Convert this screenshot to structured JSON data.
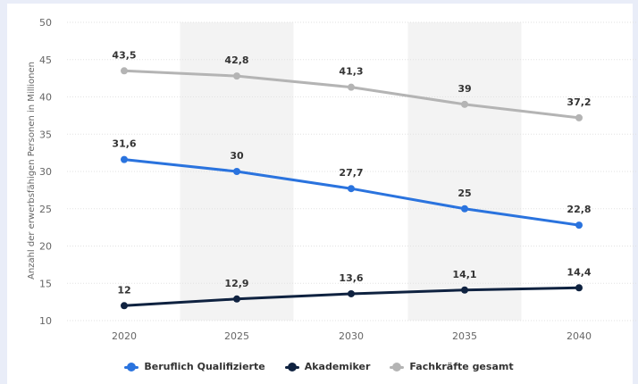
{
  "chart_data": {
    "type": "line",
    "title": "",
    "xlabel": "",
    "ylabel": "Anzahl der erwerbsfähigen Personen in Millionen",
    "categories": [
      "2020",
      "2025",
      "2030",
      "2035",
      "2040"
    ],
    "ylim": [
      10,
      50
    ],
    "yticks": [
      10,
      15,
      20,
      25,
      30,
      35,
      40,
      45,
      50
    ],
    "grid": true,
    "legend_position": "bottom",
    "series": [
      {
        "name": "Beruflich Qualifizierte",
        "color": "#2a73de",
        "values": [
          31.6,
          30,
          27.7,
          25,
          22.8
        ],
        "labels": [
          "31,6",
          "30",
          "27,7",
          "25",
          "22,8"
        ]
      },
      {
        "name": "Akademiker",
        "color": "#0f2240",
        "values": [
          12,
          12.9,
          13.6,
          14.1,
          14.4
        ],
        "labels": [
          "12",
          "12,9",
          "13,6",
          "14,1",
          "14,4"
        ]
      },
      {
        "name": "Fachkräfte gesamt",
        "color": "#b4b4b4",
        "values": [
          43.5,
          42.8,
          41.3,
          39,
          37.2
        ],
        "labels": [
          "43,5",
          "42,8",
          "41,3",
          "39",
          "37,2"
        ]
      }
    ]
  }
}
